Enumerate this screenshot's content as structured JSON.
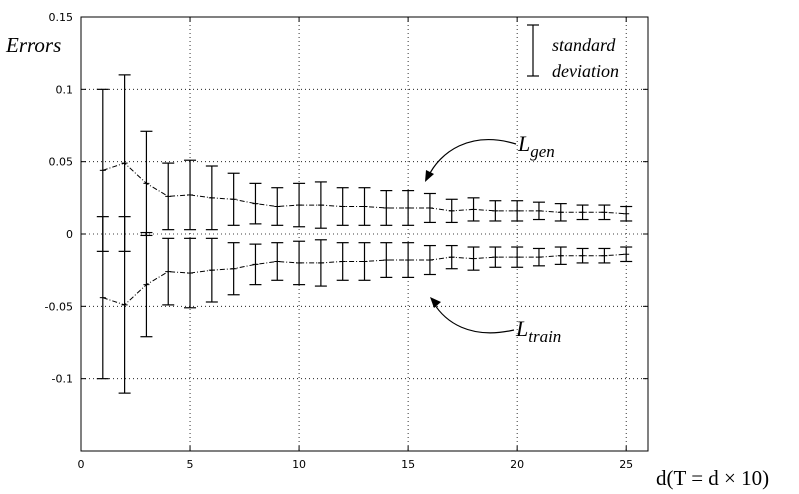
{
  "chart_data": {
    "type": "line",
    "ylabel": "Errors",
    "xlabel": "d(T = d × 10)",
    "xlim": [
      0,
      26
    ],
    "ylim": [
      -0.15,
      0.15
    ],
    "x_ticks": [
      0,
      5,
      10,
      15,
      20,
      25
    ],
    "y_ticks": [
      0.15,
      0.1,
      0.05,
      0,
      -0.05,
      -0.1
    ],
    "y_tick_labels": [
      "0.15",
      "0.1",
      "0.05",
      "0",
      "-0.05",
      "-0.1"
    ],
    "grid": true,
    "legend": {
      "label_line1": "standard",
      "label_line2": "deviation",
      "position": "top-right"
    },
    "x": [
      1,
      2,
      3,
      4,
      5,
      6,
      7,
      8,
      9,
      10,
      11,
      12,
      13,
      14,
      15,
      16,
      17,
      18,
      19,
      20,
      21,
      22,
      23,
      24,
      25
    ],
    "series": [
      {
        "name": "L_gen",
        "label_main": "L",
        "label_sub": "gen",
        "style": "dash-dot",
        "values": [
          0.044,
          0.049,
          0.035,
          0.026,
          0.027,
          0.025,
          0.024,
          0.021,
          0.019,
          0.02,
          0.02,
          0.019,
          0.019,
          0.018,
          0.018,
          0.018,
          0.016,
          0.017,
          0.016,
          0.016,
          0.016,
          0.015,
          0.015,
          0.015,
          0.014
        ],
        "std": [
          0.056,
          0.061,
          0.036,
          0.023,
          0.024,
          0.022,
          0.018,
          0.014,
          0.013,
          0.015,
          0.016,
          0.013,
          0.013,
          0.012,
          0.012,
          0.01,
          0.008,
          0.008,
          0.007,
          0.007,
          0.006,
          0.006,
          0.005,
          0.005,
          0.005
        ]
      },
      {
        "name": "L_train",
        "label_main": "L",
        "label_sub": "train",
        "style": "dash-dot",
        "values": [
          -0.044,
          -0.049,
          -0.035,
          -0.026,
          -0.027,
          -0.025,
          -0.024,
          -0.021,
          -0.019,
          -0.02,
          -0.02,
          -0.019,
          -0.019,
          -0.018,
          -0.018,
          -0.018,
          -0.016,
          -0.017,
          -0.016,
          -0.016,
          -0.016,
          -0.015,
          -0.015,
          -0.015,
          -0.014
        ],
        "std": [
          0.056,
          0.061,
          0.036,
          0.023,
          0.024,
          0.022,
          0.018,
          0.014,
          0.013,
          0.015,
          0.016,
          0.013,
          0.013,
          0.012,
          0.012,
          0.01,
          0.008,
          0.008,
          0.007,
          0.007,
          0.006,
          0.006,
          0.005,
          0.005,
          0.005
        ]
      }
    ],
    "means": [
      [
        0.011,
        0.012,
        0.0,
        0.0,
        0.0,
        0.0,
        0.0,
        0.0,
        0.0,
        0.0,
        0.0,
        0.0,
        0.0,
        0.0,
        0.0,
        0.0,
        0.0,
        0.0,
        0.0,
        0.0,
        0.0,
        0.0,
        0.0,
        0.0,
        0.0
      ]
    ]
  }
}
